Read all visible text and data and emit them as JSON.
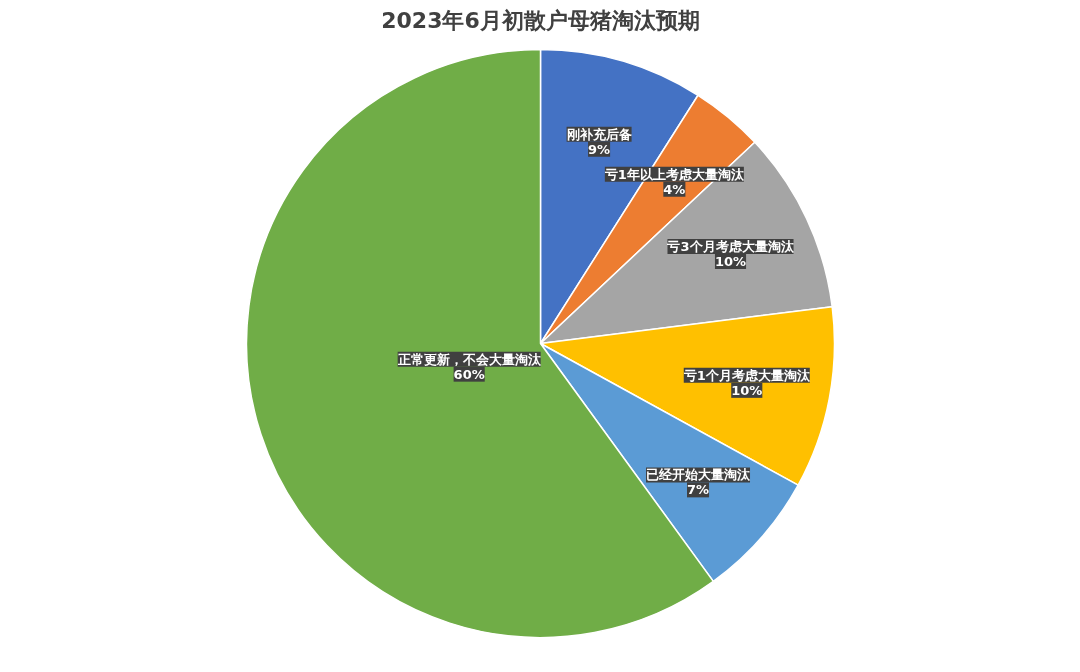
{
  "chart_data": {
    "type": "pie",
    "title": "2023年6月初散户母猪淘汰预期",
    "categories": [
      "刚补充后备",
      "亏1年以上考虑大量淘汰",
      "亏3个月考虑大量淘汰",
      "亏1个月考虑大量淘汰",
      "已经开始大量淘汰",
      "正常更新，不会大量淘汰"
    ],
    "values": [
      9,
      4,
      10,
      10,
      7,
      60
    ],
    "value_labels": [
      "9%",
      "4%",
      "10%",
      "10%",
      "7%",
      "60%"
    ],
    "colors": [
      "#4472c4",
      "#ed7d31",
      "#a5a5a5",
      "#ffc000",
      "#5b9bd5",
      "#70ad47"
    ],
    "legend": false
  }
}
